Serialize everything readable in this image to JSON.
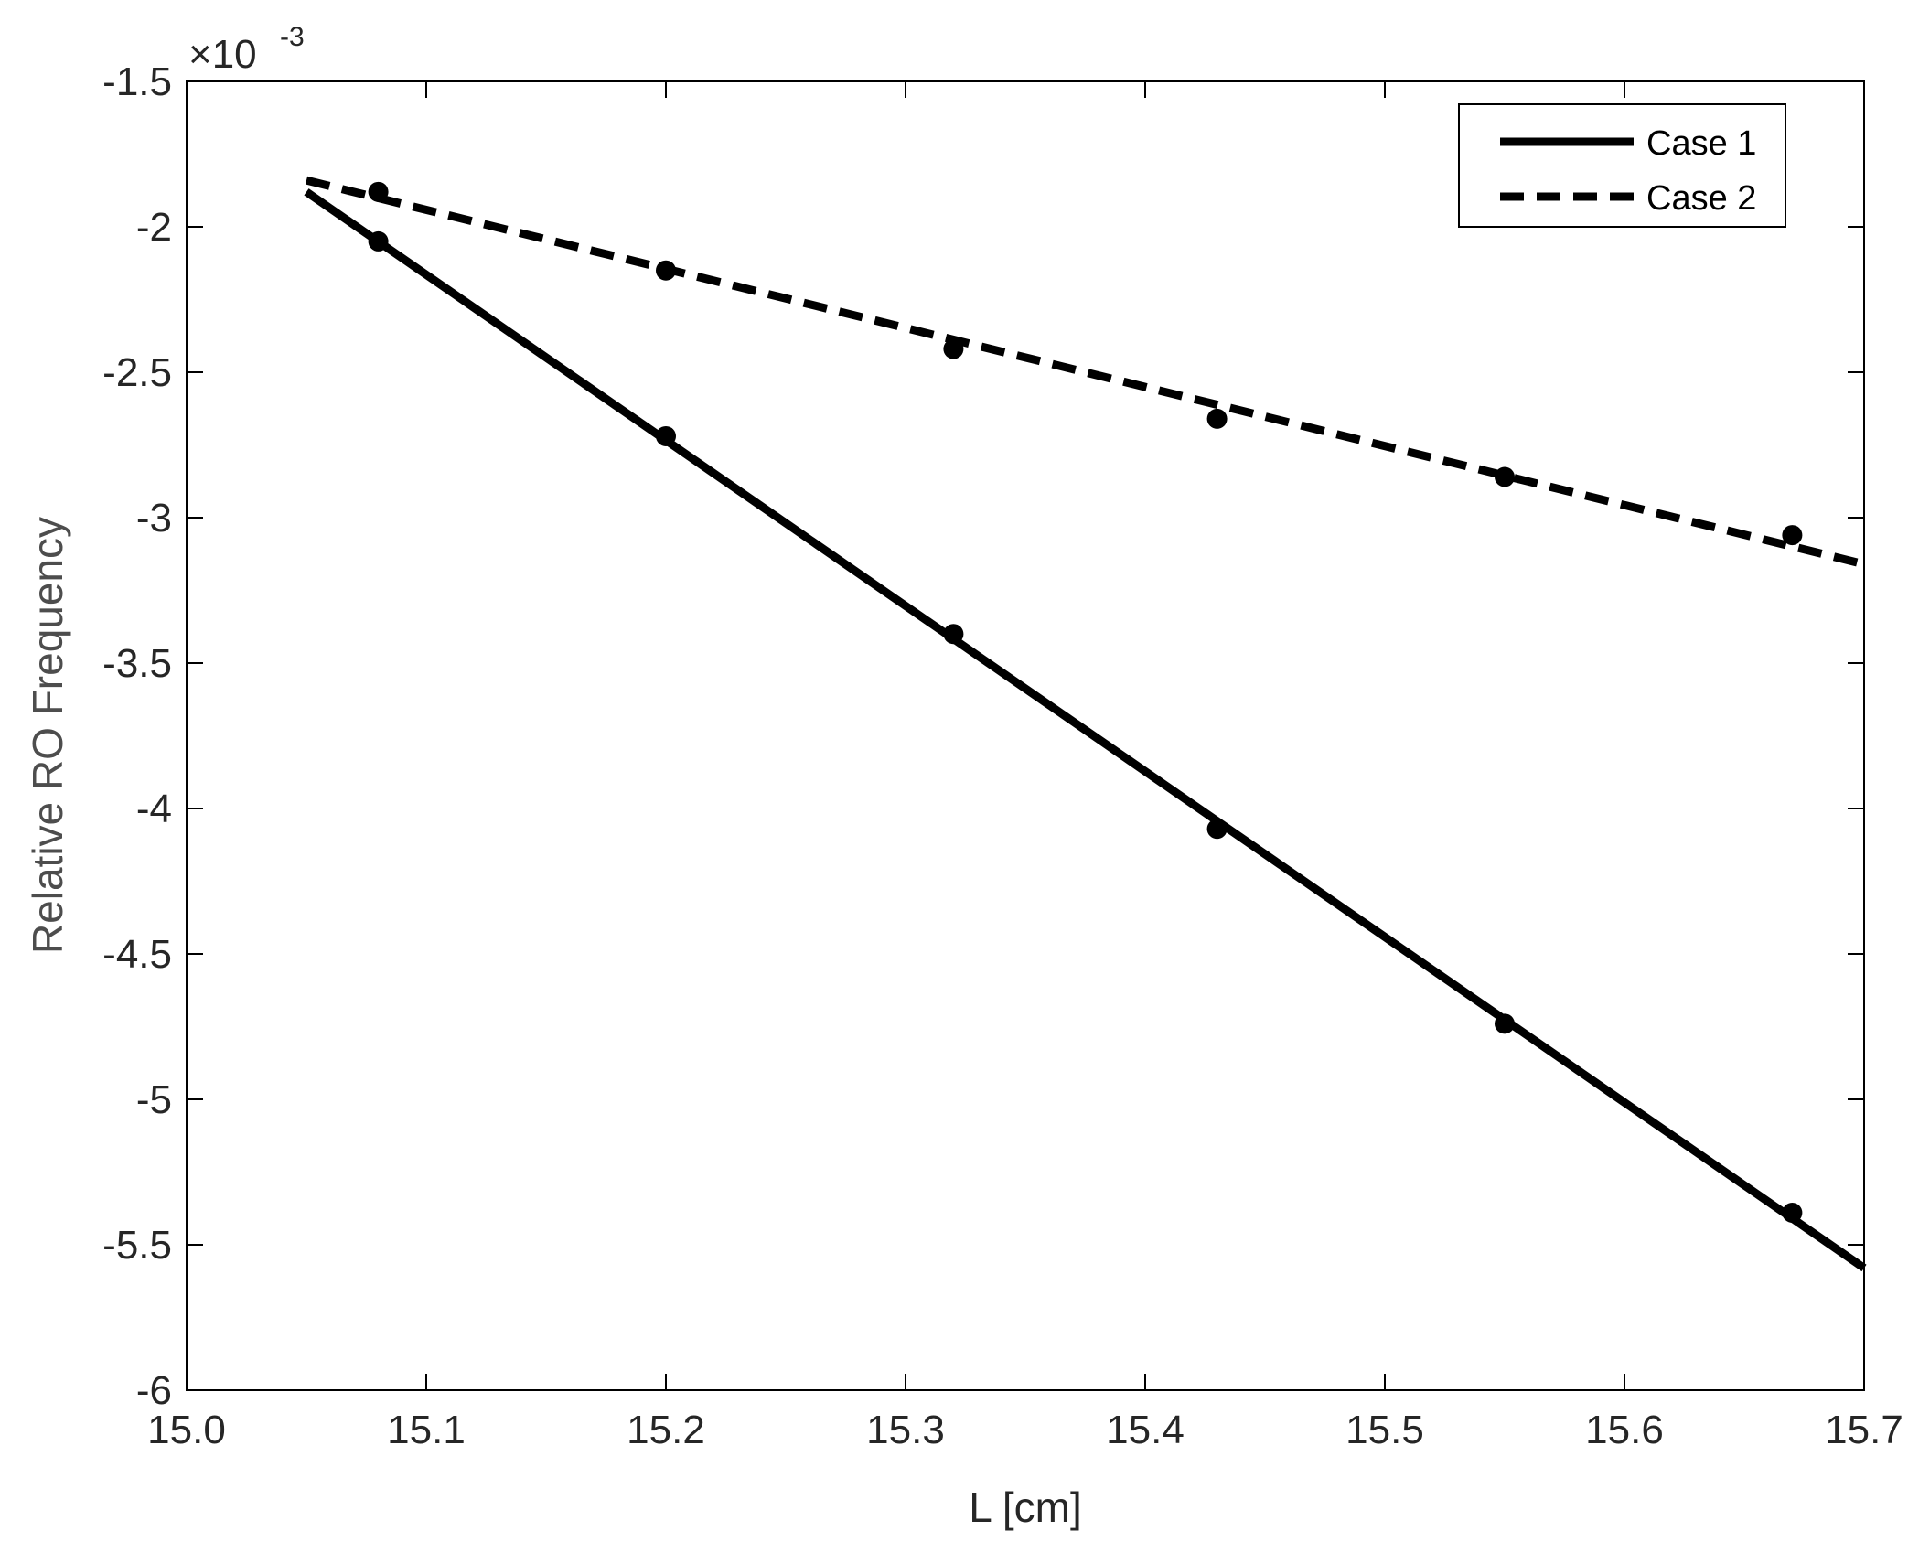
{
  "chart_data": {
    "type": "line",
    "xlabel": "L [cm]",
    "ylabel": "Relative RO Frequency",
    "exponent_base": "×10",
    "exponent_power": "-3",
    "xlim": [
      15.0,
      15.7
    ],
    "ylim": [
      -6,
      -1.5
    ],
    "xticks": [
      15.0,
      15.1,
      15.2,
      15.3,
      15.4,
      15.5,
      15.6,
      15.7
    ],
    "xtick_labels": [
      "15.0",
      "15.1",
      "15.2",
      "15.3",
      "15.4",
      "15.5",
      "15.6",
      "15.7"
    ],
    "yticks": [
      -6,
      -5.5,
      -5,
      -4.5,
      -4,
      -3.5,
      -3,
      -2.5,
      -2,
      -1.5
    ],
    "ytick_labels": [
      "-6",
      "-5.5",
      "-5",
      "-4.5",
      "-4",
      "-3.5",
      "-3",
      "-2.5",
      "-2",
      "-1.5"
    ],
    "grid": false,
    "legend_position": "top-right",
    "series": [
      {
        "name": "Case 1",
        "style": "solid",
        "color": "#000000",
        "line_x": [
          15.05,
          15.7
        ],
        "line_y": [
          -1.88,
          -5.58
        ],
        "points_x": [
          15.08,
          15.2,
          15.32,
          15.43,
          15.55,
          15.67
        ],
        "points_y": [
          -2.05,
          -2.72,
          -3.4,
          -4.07,
          -4.74,
          -5.39
        ]
      },
      {
        "name": "Case 2",
        "style": "dashed",
        "color": "#000000",
        "line_x": [
          15.05,
          15.7
        ],
        "line_y": [
          -1.84,
          -3.16
        ],
        "points_x": [
          15.08,
          15.2,
          15.32,
          15.43,
          15.55,
          15.67
        ],
        "points_y": [
          -1.88,
          -2.15,
          -2.42,
          -2.66,
          -2.86,
          -3.06
        ]
      }
    ]
  }
}
